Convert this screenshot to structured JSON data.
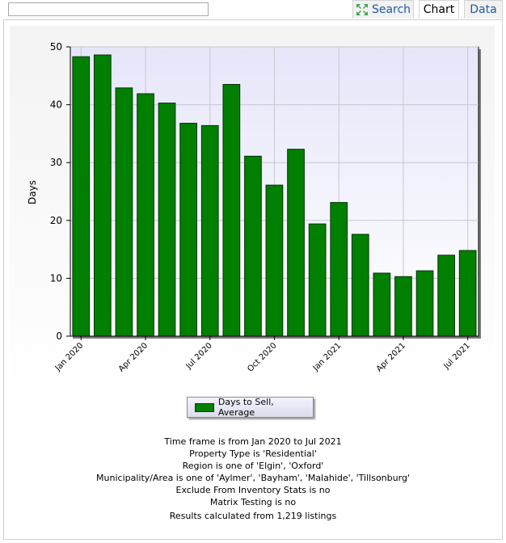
{
  "tabs": {
    "search": "Search",
    "chart": "Chart",
    "data": "Data"
  },
  "search_input": {
    "value": ""
  },
  "colors": {
    "bar_fill": "#007f00",
    "bar_border": "#003300",
    "plot_background": "#ececfa",
    "tab_link": "#1f5aa6"
  },
  "chart_data": {
    "type": "bar",
    "ylabel": "Days",
    "xlabel": "",
    "ylim": [
      0,
      50
    ],
    "y_ticks": [
      0,
      10,
      20,
      30,
      40,
      50
    ],
    "grid": true,
    "legend_position": "bottom-center",
    "categories": [
      "Jan 2020",
      "Feb 2020",
      "Mar 2020",
      "Apr 2020",
      "May 2020",
      "Jun 2020",
      "Jul 2020",
      "Aug 2020",
      "Sep 2020",
      "Oct 2020",
      "Nov 2020",
      "Dec 2020",
      "Jan 2021",
      "Feb 2021",
      "Mar 2021",
      "Apr 2021",
      "May 2021",
      "Jun 2021",
      "Jul 2021"
    ],
    "x_tick_labels": [
      "Jan 2020",
      "Apr 2020",
      "Jul 2020",
      "Oct 2020",
      "Jan 2021",
      "Apr 2021",
      "Jul 2021"
    ],
    "series": [
      {
        "name": "Days to Sell, Average",
        "values": [
          48.3,
          48.6,
          42.9,
          41.9,
          40.3,
          36.8,
          36.4,
          43.5,
          31.1,
          26.1,
          32.3,
          19.4,
          23.1,
          17.6,
          10.9,
          10.3,
          11.3,
          14.0,
          14.8
        ]
      }
    ]
  },
  "criteria": [
    "Time frame is from Jan 2020 to Jul 2021",
    "Property Type is 'Residential'",
    "Region is one of 'Elgin', 'Oxford'",
    "Municipality/Area is one of 'Aylmer', 'Bayham', 'Malahide', 'Tillsonburg'",
    "Exclude From Inventory Stats is no",
    "Matrix Testing is no"
  ],
  "results_text": "Results calculated from 1,219 listings"
}
